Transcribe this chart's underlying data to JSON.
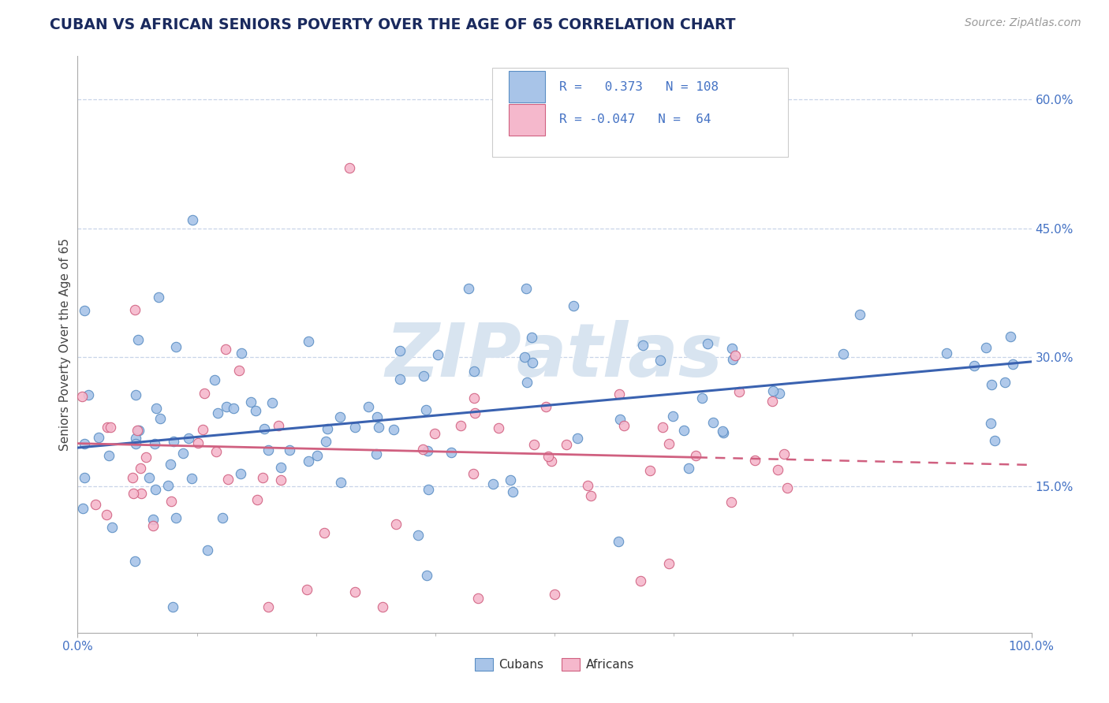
{
  "title": "CUBAN VS AFRICAN SENIORS POVERTY OVER THE AGE OF 65 CORRELATION CHART",
  "source": "Source: ZipAtlas.com",
  "ylabel": "Seniors Poverty Over the Age of 65",
  "xlim": [
    0.0,
    1.0
  ],
  "ylim": [
    -0.02,
    0.65
  ],
  "ytick_positions": [
    0.15,
    0.3,
    0.45,
    0.6
  ],
  "ytick_labels": [
    "15.0%",
    "30.0%",
    "45.0%",
    "60.0%"
  ],
  "legend_r_cubans": "0.373",
  "legend_n_cubans": "108",
  "legend_r_africans": "-0.047",
  "legend_n_africans": "64",
  "cuban_fill": "#a8c4e8",
  "cuban_edge": "#5b8ec4",
  "african_fill": "#f5b8cc",
  "african_edge": "#d06080",
  "cuban_line_color": "#3a62b0",
  "african_line_color": "#d06080",
  "watermark_color": "#d8e4f0",
  "title_color": "#1a2a5e",
  "axis_color": "#4472c4",
  "grid_color": "#c8d4e8",
  "cuban_trend_x0": 0.0,
  "cuban_trend_y0": 0.195,
  "cuban_trend_x1": 1.0,
  "cuban_trend_y1": 0.295,
  "african_trend_x0": 0.0,
  "african_trend_y0": 0.2,
  "african_trend_x1": 1.0,
  "african_trend_y1": 0.175
}
